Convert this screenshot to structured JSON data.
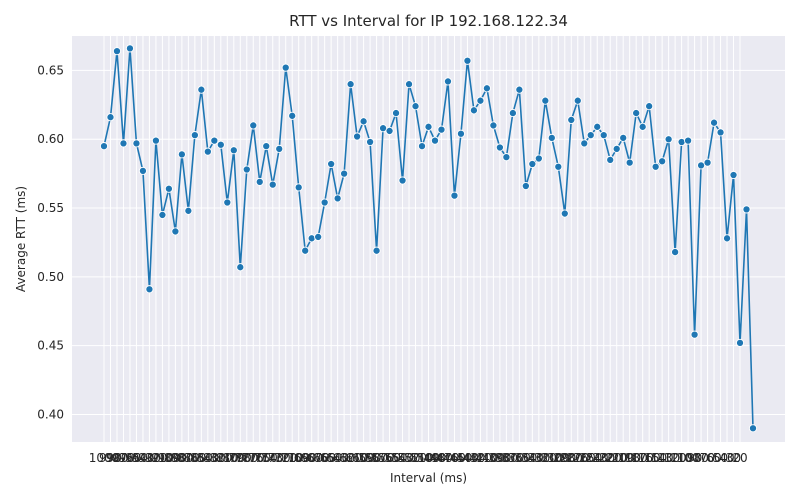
{
  "chart_data": {
    "type": "line",
    "title": "RTT vs Interval for IP 192.168.122.34",
    "xlabel": "Interval (ms)",
    "ylabel": "Average RTT (ms)",
    "ylim": [
      0.38,
      0.675
    ],
    "y_ticks": [
      "0.40",
      "0.45",
      "0.50",
      "0.55",
      "0.60",
      "0.65"
    ],
    "x_tick_range": [
      20,
      1000
    ],
    "x_tick_step": 10,
    "x_order": "descending",
    "grid": true,
    "marker": "circle",
    "series": [
      {
        "values": [
          0.595,
          0.616,
          0.664,
          0.597,
          0.666,
          0.597,
          0.577,
          0.491,
          0.599,
          0.545,
          0.564,
          0.533,
          0.589,
          0.548,
          0.603,
          0.636,
          0.591,
          0.599,
          0.596,
          0.554,
          0.592,
          0.507,
          0.578,
          0.61,
          0.569,
          0.595,
          0.567,
          0.593,
          0.652,
          0.617,
          0.565,
          0.519,
          0.528,
          0.529,
          0.554,
          0.582,
          0.557,
          0.575,
          0.64,
          0.602,
          0.613,
          0.598,
          0.519,
          0.608,
          0.606,
          0.619,
          0.57,
          0.64,
          0.624,
          0.595,
          0.609,
          0.599,
          0.607,
          0.642,
          0.559,
          0.604,
          0.657,
          0.621,
          0.628,
          0.637,
          0.61,
          0.594,
          0.587,
          0.619,
          0.636,
          0.566,
          0.582,
          0.586,
          0.628,
          0.601,
          0.58,
          0.546,
          0.614,
          0.628,
          0.597,
          0.603,
          0.609,
          0.603,
          0.585,
          0.593,
          0.601,
          0.583,
          0.619,
          0.609,
          0.624,
          0.58,
          0.584,
          0.6,
          0.518,
          0.598,
          0.599,
          0.458,
          0.581,
          0.583,
          0.612,
          0.605,
          0.528,
          0.574,
          0.452,
          0.549,
          0.39
        ]
      }
    ]
  },
  "colors": {
    "line": "#1f77b4",
    "plot_background": "#eaeaf2",
    "grid": "#ffffff",
    "text": "#262626"
  }
}
